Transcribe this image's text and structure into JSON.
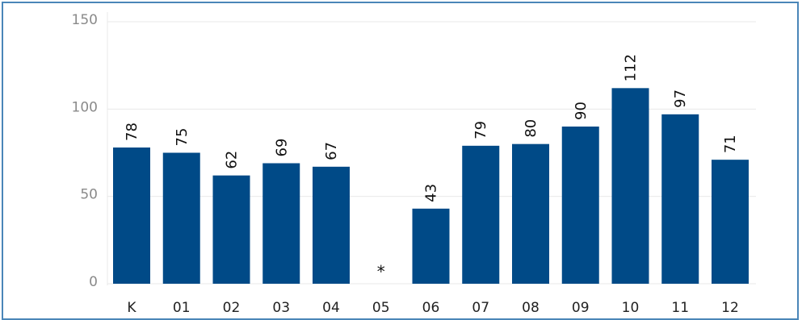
{
  "chart_data": {
    "type": "bar",
    "categories": [
      "K",
      "01",
      "02",
      "03",
      "04",
      "05",
      "06",
      "07",
      "08",
      "09",
      "10",
      "11",
      "12"
    ],
    "values": [
      78,
      75,
      62,
      69,
      67,
      null,
      43,
      79,
      80,
      90,
      112,
      97,
      71
    ],
    "value_labels": [
      "78",
      "75",
      "62",
      "69",
      "67",
      "*",
      "43",
      "79",
      "80",
      "90",
      "112",
      "97",
      "71"
    ],
    "title": "",
    "xlabel": "",
    "ylabel": "",
    "ylim": [
      0,
      150
    ],
    "yticks": [
      "0",
      "50",
      "100",
      "150"
    ],
    "grid": true,
    "legend": "none",
    "colors": {
      "bar": "#004a87",
      "grid": "#e8e8e8",
      "frame": "#4a86b8"
    }
  }
}
